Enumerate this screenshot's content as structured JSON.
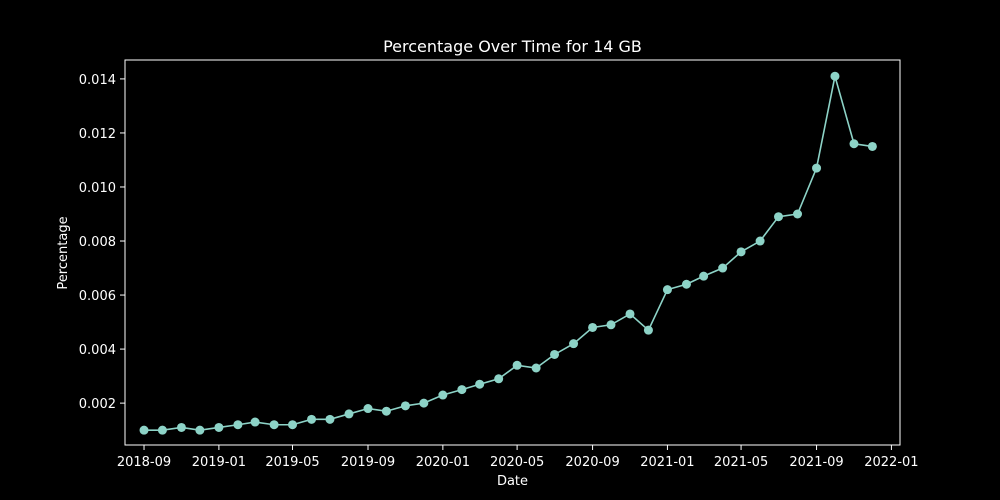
{
  "colors": {
    "background": "#000000",
    "foreground": "#ffffff",
    "series": "#8dd3c7"
  },
  "chart_data": {
    "type": "line",
    "title": "Percentage Over Time for 14 GB",
    "xlabel": "Date",
    "ylabel": "Percentage",
    "grid": false,
    "legend": "none",
    "xlim": [
      "2018-08-01",
      "2022-01-15"
    ],
    "ylim": [
      0.00045,
      0.0147
    ],
    "x_ticks": [
      "2018-09",
      "2019-01",
      "2019-05",
      "2019-09",
      "2020-01",
      "2020-05",
      "2020-09",
      "2021-01",
      "2021-05",
      "2021-09",
      "2022-01"
    ],
    "y_ticks": [
      "0.002",
      "0.004",
      "0.006",
      "0.008",
      "0.010",
      "0.012",
      "0.014"
    ],
    "x": [
      "2018-09-01",
      "2018-10-01",
      "2018-11-01",
      "2018-12-01",
      "2019-01-01",
      "2019-02-01",
      "2019-03-01",
      "2019-04-01",
      "2019-05-01",
      "2019-06-01",
      "2019-07-01",
      "2019-08-01",
      "2019-09-01",
      "2019-10-01",
      "2019-11-01",
      "2019-12-01",
      "2020-01-01",
      "2020-02-01",
      "2020-03-01",
      "2020-04-01",
      "2020-05-01",
      "2020-06-01",
      "2020-07-01",
      "2020-08-01",
      "2020-09-01",
      "2020-10-01",
      "2020-11-01",
      "2020-12-01",
      "2021-01-01",
      "2021-02-01",
      "2021-03-01",
      "2021-04-01",
      "2021-05-01",
      "2021-06-01",
      "2021-07-01",
      "2021-08-01",
      "2021-09-01",
      "2021-10-01",
      "2021-11-01",
      "2021-12-01"
    ],
    "series": [
      {
        "values": [
          0.001,
          0.001,
          0.0011,
          0.001,
          0.0011,
          0.0012,
          0.0013,
          0.0012,
          0.0012,
          0.0014,
          0.0014,
          0.0016,
          0.0018,
          0.0017,
          0.0019,
          0.002,
          0.0023,
          0.0025,
          0.0027,
          0.0029,
          0.0034,
          0.0033,
          0.0038,
          0.0042,
          0.0048,
          0.0049,
          0.0053,
          0.0047,
          0.0062,
          0.0064,
          0.0067,
          0.007,
          0.0076,
          0.008,
          0.0089,
          0.009,
          0.0107,
          0.0141,
          0.0116,
          0.0115
        ]
      }
    ]
  }
}
